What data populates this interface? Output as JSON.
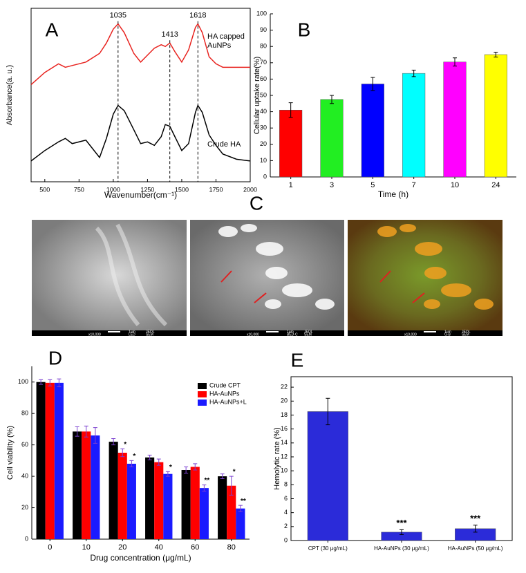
{
  "chart_data": [
    {
      "type": "line",
      "panel": "A",
      "xlabel": "Wavenumber(cm⁻¹)",
      "ylabel": "Absorbance(a. u.)",
      "x": [
        400,
        500,
        600,
        650,
        700,
        800,
        900,
        950,
        1000,
        1035,
        1080,
        1150,
        1200,
        1250,
        1300,
        1350,
        1380,
        1413,
        1450,
        1500,
        1550,
        1600,
        1618,
        1650,
        1700,
        1750,
        1800,
        1900,
        2000
      ],
      "series": [
        {
          "name": "HA capped AuNPs",
          "color": "#e8231f",
          "values": [
            5.6,
            6.3,
            6.8,
            6.6,
            6.7,
            6.9,
            7.4,
            8.0,
            8.8,
            9.1,
            8.6,
            7.4,
            6.9,
            7.3,
            7.7,
            7.9,
            7.8,
            8.0,
            7.5,
            6.9,
            7.6,
            8.9,
            9.1,
            8.6,
            7.2,
            6.8,
            6.6,
            6.6,
            6.6
          ]
        },
        {
          "name": "Crude HA",
          "color": "#000000",
          "values": [
            1.2,
            1.8,
            2.3,
            2.5,
            2.2,
            2.4,
            1.4,
            2.5,
            3.9,
            4.4,
            4.1,
            3.0,
            2.2,
            2.3,
            2.1,
            2.6,
            3.3,
            3.2,
            2.6,
            1.8,
            2.2,
            4.0,
            4.4,
            4.0,
            2.7,
            2.1,
            1.6,
            1.3,
            1.2
          ]
        }
      ],
      "xlim": [
        400,
        2000
      ],
      "xticks": [
        500,
        750,
        1000,
        1250,
        1500,
        1750,
        2000
      ],
      "ylim": [
        0,
        10
      ],
      "annotations": [
        1035,
        1413,
        1618
      ]
    },
    {
      "type": "bar",
      "panel": "B",
      "xlabel": "Time (h)",
      "ylabel": "Cellular uptake rate(%)",
      "categories": [
        "1",
        "3",
        "5",
        "7",
        "10",
        "24"
      ],
      "values": [
        41,
        47.5,
        57,
        63.5,
        70.5,
        75
      ],
      "errors": [
        4.5,
        2.5,
        4,
        2,
        2.5,
        1.5
      ],
      "colors": [
        "#ff0000",
        "#22ee22",
        "#0000ff",
        "#00ffff",
        "#ff00ff",
        "#ffff00"
      ],
      "ylim": [
        0,
        100
      ],
      "yticks": [
        0,
        10,
        20,
        30,
        40,
        50,
        60,
        70,
        80,
        90,
        100
      ]
    },
    {
      "type": "grouped_bar",
      "panel": "D",
      "xlabel": "Drug concentration (μg/mL)",
      "ylabel": "Cell viability (%)",
      "categories": [
        "0",
        "10",
        "20",
        "40",
        "60",
        "80"
      ],
      "legend": "upper right",
      "error_color": "#7a3fd0",
      "series": [
        {
          "name": "Crude CPT",
          "color": "#000000",
          "values": [
            100,
            68.5,
            62,
            52,
            44,
            40
          ],
          "errors": [
            1.5,
            3,
            2,
            1.5,
            2,
            1.5
          ],
          "annotations": [
            null,
            null,
            null,
            null,
            null,
            null
          ]
        },
        {
          "name": "HA-AuNPs",
          "color": "#ff0000",
          "values": [
            99.5,
            68.5,
            55,
            49,
            46,
            34
          ],
          "errors": [
            2,
            3.5,
            2.5,
            2,
            2,
            6
          ],
          "annotations": [
            null,
            null,
            "*",
            null,
            null,
            "*"
          ]
        },
        {
          "name": "HA-AuNPs+L",
          "color": "#1a1aff",
          "values": [
            99.5,
            66,
            48,
            41.5,
            32.5,
            19.5
          ],
          "errors": [
            2.5,
            5,
            2,
            1.5,
            2,
            2
          ],
          "annotations": [
            null,
            null,
            "*",
            "*",
            "**",
            "**"
          ]
        }
      ],
      "ylim": [
        0,
        110
      ],
      "yticks": [
        0,
        20,
        40,
        60,
        80,
        100
      ]
    },
    {
      "type": "bar",
      "panel": "E",
      "ylabel": "Hemolytic rate (%)",
      "categories": [
        "CPT (30 μg/mL)",
        "HA-AuNPs (30 μg/mL)",
        "HA-AuNPs (50 μg/mL)"
      ],
      "values": [
        18.5,
        1.2,
        1.7
      ],
      "errors": [
        1.9,
        0.35,
        0.5
      ],
      "annotations": [
        null,
        "***",
        "***"
      ],
      "color": "#2b2bd9",
      "ylim": [
        0,
        23.5
      ],
      "yticks": [
        0,
        2,
        4,
        6,
        8,
        10,
        12,
        14,
        16,
        18,
        20,
        22
      ]
    }
  ],
  "panel_c": {
    "label": "C",
    "images": [
      {
        "scale": "1μm",
        "brand": "JEOL",
        "magnification": "x10,000",
        "detector": "LED",
        "mode": "SEM"
      },
      {
        "scale": "1μm",
        "brand": "JEOL",
        "magnification": "x10,000",
        "detector": "BED-C",
        "mode": "SEM"
      },
      {
        "scale": "1μm",
        "brand": "JEOL",
        "magnification": "x10,000",
        "detector": "G-B",
        "mode": "SEM"
      }
    ]
  }
}
